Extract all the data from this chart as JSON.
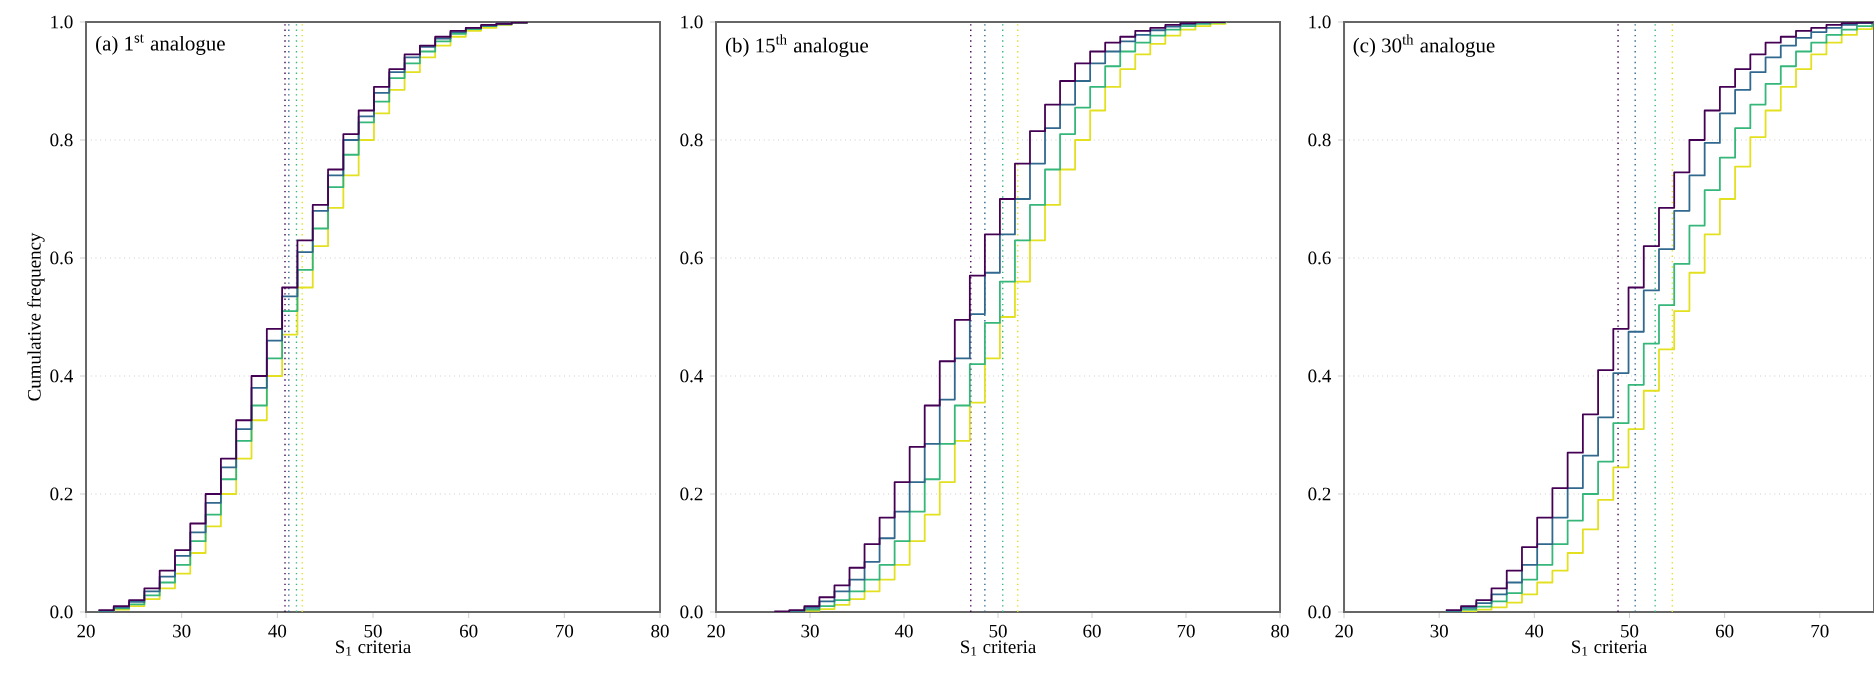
{
  "chart_data": [
    {
      "type": "step",
      "title": "(a) 1$^{st}$ analogue",
      "xlabel": "S$_{1}$ criteria",
      "ylabel": "Cumulative frequency",
      "xlim": [
        20,
        80
      ],
      "ylim": [
        0,
        1
      ],
      "xticks": [
        20,
        30,
        40,
        50,
        60,
        70,
        80
      ],
      "yticks": [
        {
          "value": 0,
          "label": "0.0"
        },
        {
          "value": 0.2,
          "label": "0.2"
        },
        {
          "value": 0.4,
          "label": "0.4"
        },
        {
          "value": 0.6,
          "label": "0.6"
        },
        {
          "value": 0.8,
          "label": "0.8"
        },
        {
          "value": 1,
          "label": "1.0"
        }
      ],
      "grid": "y",
      "x": [
        21.3,
        22.9,
        24.5,
        26.1,
        27.7,
        29.3,
        30.9,
        32.5,
        34.1,
        35.7,
        37.3,
        38.9,
        40.5,
        42.1,
        43.7,
        45.3,
        46.9,
        48.5,
        50.1,
        51.7,
        53.3,
        54.9,
        56.5,
        58.1,
        59.7,
        61.3,
        62.9,
        64.5,
        66.1
      ],
      "series": [
        {
          "color": "#440154",
          "values": [
            0.003,
            0.01,
            0.02,
            0.04,
            0.07,
            0.105,
            0.15,
            0.2,
            0.26,
            0.325,
            0.4,
            0.48,
            0.55,
            0.63,
            0.69,
            0.75,
            0.81,
            0.85,
            0.89,
            0.92,
            0.945,
            0.96,
            0.975,
            0.985,
            0.99,
            0.995,
            0.997,
            0.999,
            1.0
          ]
        },
        {
          "color": "#31688e",
          "values": [
            0.002,
            0.008,
            0.017,
            0.035,
            0.06,
            0.095,
            0.135,
            0.185,
            0.245,
            0.31,
            0.38,
            0.46,
            0.535,
            0.61,
            0.68,
            0.74,
            0.8,
            0.84,
            0.88,
            0.915,
            0.94,
            0.958,
            0.972,
            0.983,
            0.99,
            0.994,
            0.997,
            0.999,
            1.0
          ]
        },
        {
          "color": "#35b779",
          "values": [
            0.001,
            0.006,
            0.013,
            0.028,
            0.05,
            0.08,
            0.12,
            0.165,
            0.225,
            0.29,
            0.35,
            0.43,
            0.51,
            0.58,
            0.65,
            0.72,
            0.775,
            0.83,
            0.865,
            0.905,
            0.93,
            0.95,
            0.967,
            0.98,
            0.988,
            0.993,
            0.996,
            0.999,
            1.0
          ]
        },
        {
          "color": "#e3e01f",
          "values": [
            0.0,
            0.004,
            0.01,
            0.022,
            0.04,
            0.065,
            0.1,
            0.145,
            0.2,
            0.26,
            0.325,
            0.4,
            0.47,
            0.55,
            0.62,
            0.685,
            0.74,
            0.8,
            0.845,
            0.885,
            0.915,
            0.94,
            0.96,
            0.975,
            0.985,
            0.99,
            0.995,
            0.998,
            1.0
          ]
        }
      ],
      "ref_lines": [
        {
          "axis": "x",
          "value": 40.8,
          "color": "#440154",
          "line_style": "dotted"
        },
        {
          "axis": "x",
          "value": 41.2,
          "color": "#31688e",
          "line_style": "dotted"
        },
        {
          "axis": "x",
          "value": 42.0,
          "color": "#35b779",
          "line_style": "dotted"
        },
        {
          "axis": "x",
          "value": 42.6,
          "color": "#e3e01f",
          "line_style": "dotted"
        }
      ]
    },
    {
      "type": "step",
      "title": "(b) 15$^{th}$ analogue",
      "xlabel": "S$_{1}$ criteria",
      "xlim": [
        20,
        80
      ],
      "ylim": [
        0,
        1
      ],
      "xticks": [
        20,
        30,
        40,
        50,
        60,
        70,
        80
      ],
      "yticks": [
        {
          "value": 0,
          "label": "0.0"
        },
        {
          "value": 0.2,
          "label": "0.2"
        },
        {
          "value": 0.4,
          "label": "0.4"
        },
        {
          "value": 0.6,
          "label": "0.6"
        },
        {
          "value": 0.8,
          "label": "0.8"
        },
        {
          "value": 1,
          "label": "1.0"
        }
      ],
      "grid": "y",
      "x": [
        26.2,
        27.8,
        29.4,
        31.0,
        32.6,
        34.2,
        35.8,
        37.4,
        39.0,
        40.6,
        42.2,
        43.8,
        45.4,
        47.0,
        48.6,
        50.2,
        51.8,
        53.4,
        55.0,
        56.6,
        58.2,
        59.8,
        61.4,
        63.0,
        64.6,
        66.2,
        67.8,
        69.4,
        71.0,
        72.6,
        74.2
      ],
      "series": [
        {
          "color": "#440154",
          "values": [
            0.001,
            0.003,
            0.01,
            0.025,
            0.045,
            0.075,
            0.115,
            0.16,
            0.22,
            0.28,
            0.35,
            0.425,
            0.495,
            0.57,
            0.64,
            0.7,
            0.76,
            0.815,
            0.86,
            0.9,
            0.93,
            0.95,
            0.965,
            0.975,
            0.985,
            0.99,
            0.995,
            0.998,
            1.0,
            1.0,
            1.0
          ]
        },
        {
          "color": "#31688e",
          "values": [
            0.0,
            0.002,
            0.007,
            0.018,
            0.035,
            0.055,
            0.085,
            0.125,
            0.17,
            0.22,
            0.285,
            0.36,
            0.43,
            0.505,
            0.575,
            0.64,
            0.7,
            0.76,
            0.82,
            0.86,
            0.9,
            0.93,
            0.95,
            0.967,
            0.978,
            0.986,
            0.992,
            0.996,
            0.999,
            1.0,
            1.0
          ]
        },
        {
          "color": "#35b779",
          "values": [
            0.0,
            0.001,
            0.004,
            0.01,
            0.02,
            0.035,
            0.055,
            0.08,
            0.12,
            0.17,
            0.225,
            0.285,
            0.35,
            0.42,
            0.49,
            0.56,
            0.63,
            0.69,
            0.75,
            0.81,
            0.855,
            0.89,
            0.925,
            0.95,
            0.965,
            0.977,
            0.987,
            0.993,
            0.997,
            0.999,
            1.0
          ]
        },
        {
          "color": "#e3e01f",
          "values": [
            0.0,
            0.0,
            0.002,
            0.005,
            0.012,
            0.022,
            0.035,
            0.055,
            0.08,
            0.12,
            0.165,
            0.22,
            0.29,
            0.355,
            0.43,
            0.5,
            0.56,
            0.63,
            0.69,
            0.75,
            0.8,
            0.85,
            0.89,
            0.92,
            0.945,
            0.963,
            0.977,
            0.987,
            0.993,
            0.997,
            1.0
          ]
        }
      ],
      "ref_lines": [
        {
          "axis": "x",
          "value": 47.1,
          "color": "#440154",
          "line_style": "dotted"
        },
        {
          "axis": "x",
          "value": 48.6,
          "color": "#31688e",
          "line_style": "dotted"
        },
        {
          "axis": "x",
          "value": 50.5,
          "color": "#35b779",
          "line_style": "dotted"
        },
        {
          "axis": "x",
          "value": 52.1,
          "color": "#e3e01f",
          "line_style": "dotted"
        }
      ]
    },
    {
      "type": "step",
      "title": "(c) 30$^{th}$ analogue",
      "xlabel": "S$_{1}$ criteria",
      "xlim": [
        20,
        75.7
      ],
      "ylim": [
        0,
        1
      ],
      "xticks": [
        20,
        30,
        40,
        50,
        60,
        70
      ],
      "yticks": [
        {
          "value": 0,
          "label": "0.0"
        },
        {
          "value": 0.2,
          "label": "0.2"
        },
        {
          "value": 0.4,
          "label": "0.4"
        },
        {
          "value": 0.6,
          "label": "0.6"
        },
        {
          "value": 0.8,
          "label": "0.8"
        },
        {
          "value": 1,
          "label": "1.0"
        }
      ],
      "grid": "y",
      "x": [
        30.7,
        32.3,
        33.9,
        35.5,
        37.1,
        38.7,
        40.3,
        41.9,
        43.5,
        45.1,
        46.7,
        48.3,
        49.9,
        51.5,
        53.1,
        54.7,
        56.3,
        57.9,
        59.5,
        61.1,
        62.7,
        64.3,
        65.9,
        67.5,
        69.1,
        70.7,
        72.3,
        73.9,
        75.5
      ],
      "series": [
        {
          "color": "#440154",
          "values": [
            0.003,
            0.01,
            0.02,
            0.04,
            0.07,
            0.11,
            0.16,
            0.21,
            0.27,
            0.335,
            0.41,
            0.48,
            0.55,
            0.62,
            0.685,
            0.745,
            0.8,
            0.85,
            0.89,
            0.92,
            0.945,
            0.965,
            0.975,
            0.985,
            0.99,
            0.995,
            0.998,
            0.999,
            1.0
          ]
        },
        {
          "color": "#31688e",
          "values": [
            0.002,
            0.007,
            0.015,
            0.03,
            0.05,
            0.08,
            0.115,
            0.16,
            0.21,
            0.265,
            0.33,
            0.405,
            0.475,
            0.545,
            0.615,
            0.68,
            0.74,
            0.795,
            0.845,
            0.885,
            0.915,
            0.94,
            0.96,
            0.973,
            0.983,
            0.99,
            0.995,
            0.998,
            0.999
          ]
        },
        {
          "color": "#35b779",
          "values": [
            0.001,
            0.004,
            0.009,
            0.018,
            0.032,
            0.055,
            0.08,
            0.115,
            0.155,
            0.2,
            0.255,
            0.32,
            0.385,
            0.455,
            0.52,
            0.59,
            0.655,
            0.715,
            0.77,
            0.82,
            0.86,
            0.895,
            0.925,
            0.95,
            0.965,
            0.978,
            0.987,
            0.993,
            0.997
          ]
        },
        {
          "color": "#e3e01f",
          "values": [
            0.0,
            0.001,
            0.004,
            0.008,
            0.016,
            0.03,
            0.05,
            0.07,
            0.1,
            0.14,
            0.19,
            0.245,
            0.31,
            0.375,
            0.445,
            0.51,
            0.575,
            0.64,
            0.7,
            0.755,
            0.805,
            0.85,
            0.89,
            0.92,
            0.945,
            0.965,
            0.978,
            0.988,
            0.995
          ]
        }
      ],
      "ref_lines": [
        {
          "axis": "x",
          "value": 48.8,
          "color": "#440154",
          "line_style": "dotted"
        },
        {
          "axis": "x",
          "value": 50.6,
          "color": "#31688e",
          "line_style": "dotted"
        },
        {
          "axis": "x",
          "value": 52.7,
          "color": "#35b779",
          "line_style": "dotted"
        },
        {
          "axis": "x",
          "value": 54.5,
          "color": "#e3e01f",
          "line_style": "dotted"
        }
      ]
    }
  ]
}
